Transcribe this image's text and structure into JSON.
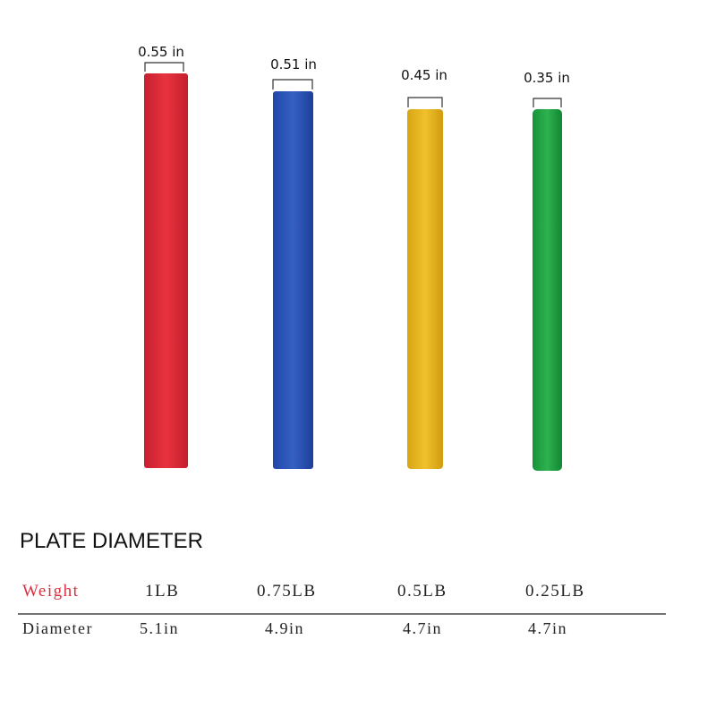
{
  "plates": [
    {
      "thickness": "0.55 in"
    },
    {
      "thickness": "0.51 in"
    },
    {
      "thickness": "0.45 in"
    },
    {
      "thickness": "0.35 in"
    }
  ],
  "section_title": "PLATE DIAMETER",
  "table": {
    "rows": [
      [
        "Weight",
        "1LB",
        "0.75LB",
        "0.5LB",
        "0.25LB"
      ],
      [
        "Diameter",
        "5.1in",
        "4.9in",
        "4.7in",
        "4.7in"
      ]
    ]
  }
}
